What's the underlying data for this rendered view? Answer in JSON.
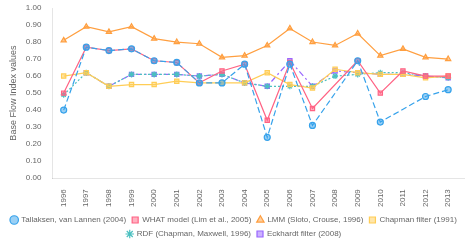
{
  "chart_data": {
    "type": "line",
    "x": [
      1996,
      1997,
      1998,
      1999,
      2000,
      2001,
      2002,
      2003,
      2004,
      2005,
      2006,
      2007,
      2008,
      2009,
      2010,
      2011,
      2012,
      2013
    ],
    "xlim": [
      1995.5,
      2013.7
    ],
    "xticks": [
      1996,
      1997,
      1998,
      1999,
      2000,
      2001,
      2002,
      2003,
      2004,
      2005,
      2006,
      2007,
      2008,
      2009,
      2010,
      2011,
      2012,
      2013
    ],
    "ylabel": "Base Flow Index values",
    "ylim": [
      0,
      1.0
    ],
    "yticks": [
      {
        "value": 0,
        "label": "0.00"
      },
      {
        "value": 0.1,
        "label": "0.10"
      },
      {
        "value": 0.2,
        "label": "0.20"
      },
      {
        "value": 0.3,
        "label": "0.30"
      },
      {
        "value": 0.4,
        "label": "0.40"
      },
      {
        "value": 0.5,
        "label": "0.50"
      },
      {
        "value": 0.6,
        "label": "0.60"
      },
      {
        "value": 0.7,
        "label": "0.70"
      },
      {
        "value": 0.8,
        "label": "0.80"
      },
      {
        "value": 0.9,
        "label": "0.90"
      },
      {
        "value": 1.0,
        "label": "1.00"
      }
    ],
    "grid": false,
    "legend": "bottom",
    "series": [
      {
        "name": "Tallaksen, van Lannen (2004)",
        "marker": "circle",
        "line_style": "dashed",
        "values": [
          0.4,
          0.77,
          0.75,
          0.76,
          0.69,
          0.68,
          0.56,
          0.56,
          0.67,
          0.24,
          0.67,
          0.31,
          null,
          0.69,
          0.33,
          null,
          0.48,
          0.52
        ]
      },
      {
        "name": "WHAT model (Lim et al., 2005)",
        "marker": "square",
        "line_style": "solid",
        "values": [
          0.5,
          0.77,
          0.75,
          0.76,
          0.69,
          0.68,
          0.56,
          0.63,
          0.67,
          0.34,
          0.68,
          0.41,
          null,
          0.69,
          0.5,
          0.63,
          0.6,
          0.6
        ]
      },
      {
        "name": "LMM (Sloto, Crouse, 1996)",
        "marker": "triangle",
        "line_style": "solid",
        "values": [
          0.81,
          0.89,
          0.86,
          0.89,
          0.82,
          0.8,
          0.79,
          0.71,
          0.72,
          0.78,
          0.88,
          0.8,
          0.78,
          0.85,
          0.72,
          0.76,
          0.71,
          0.7
        ]
      },
      {
        "name": "Chapman filter (1991)",
        "marker": "square",
        "line_style": "solid",
        "values": [
          0.6,
          0.62,
          0.54,
          0.55,
          0.55,
          0.57,
          0.56,
          0.56,
          0.56,
          0.62,
          0.55,
          0.53,
          0.64,
          0.62,
          0.61,
          0.61,
          0.59,
          0.6
        ]
      },
      {
        "name": "RDF (Chapman, Maxwell, 1996)",
        "marker": "star",
        "line_style": "dotted",
        "values": [
          0.49,
          0.62,
          0.54,
          0.61,
          0.61,
          0.61,
          0.6,
          0.61,
          0.56,
          0.54,
          0.54,
          0.54,
          0.6,
          0.61,
          0.62,
          0.62,
          0.6,
          0.59
        ]
      },
      {
        "name": "Eckhardt filter (2008)",
        "marker": "square",
        "line_style": "dashdot",
        "values": [
          null,
          0.62,
          0.54,
          0.61,
          0.61,
          0.61,
          0.6,
          0.61,
          0.56,
          0.54,
          0.69,
          0.54,
          0.63,
          0.62,
          0.61,
          0.61,
          0.6,
          0.59
        ]
      }
    ]
  }
}
